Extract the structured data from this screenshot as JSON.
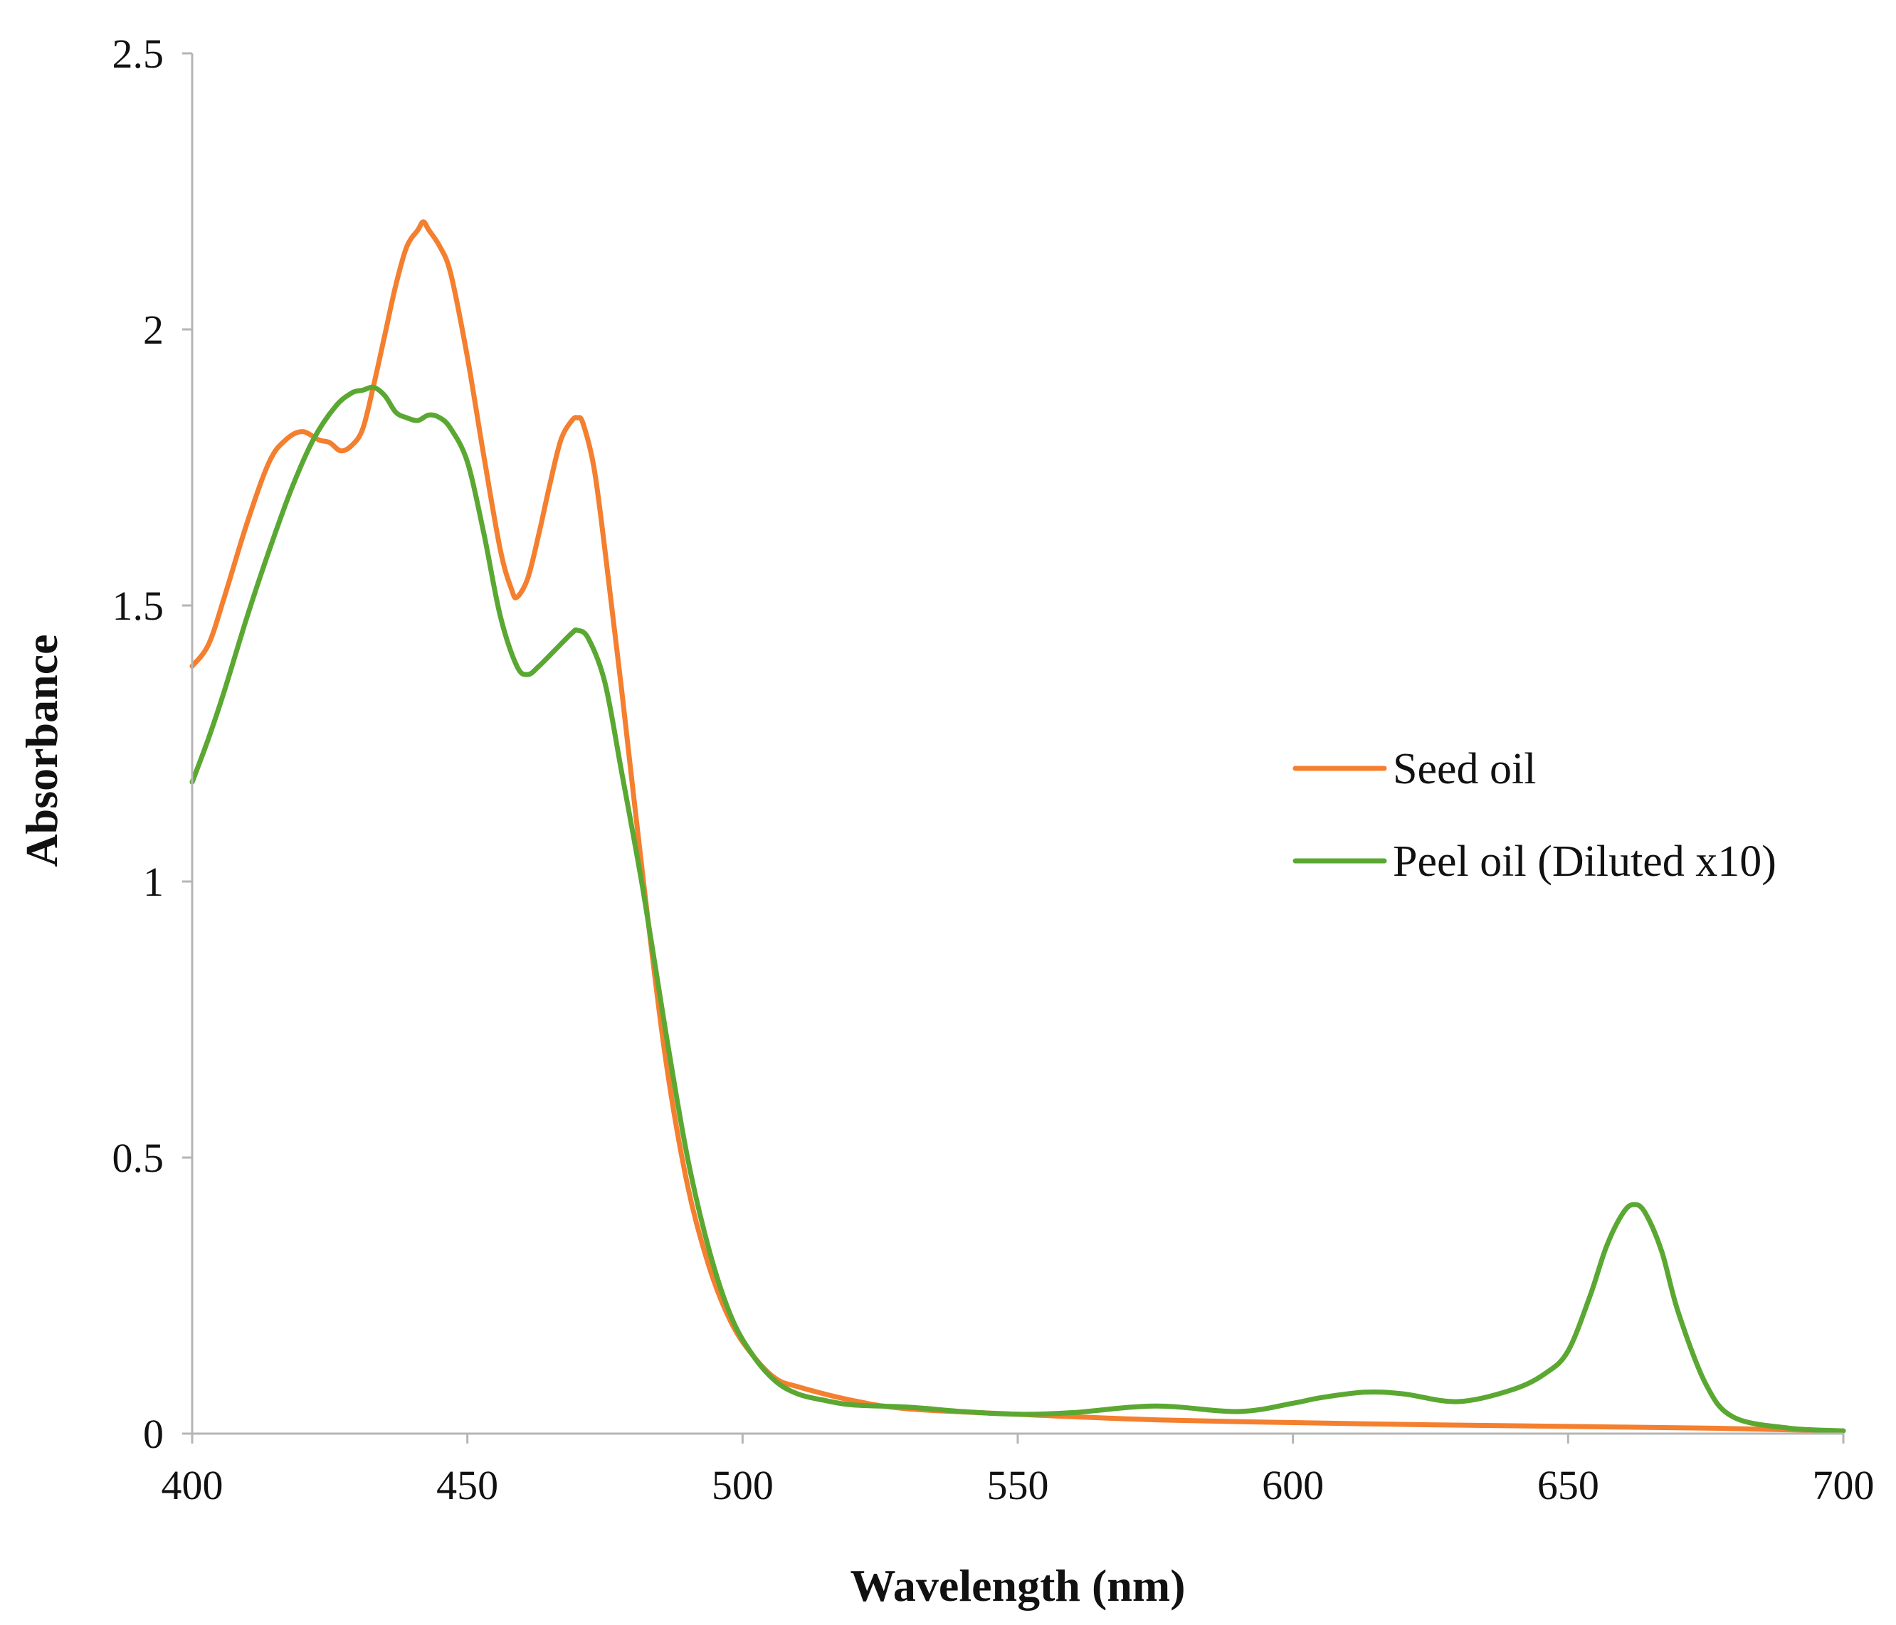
{
  "chart_data": {
    "type": "line",
    "title": "",
    "xlabel": "Wavelength (nm)",
    "ylabel": "Absorbance",
    "xlim": [
      400,
      700
    ],
    "ylim": [
      0,
      2.5
    ],
    "xticks": [
      400,
      450,
      500,
      550,
      600,
      650,
      700
    ],
    "yticks": [
      0,
      0.5,
      1,
      1.5,
      2,
      2.5
    ],
    "xtick_labels": [
      "400",
      "450",
      "500",
      "550",
      "600",
      "650",
      "700"
    ],
    "ytick_labels": [
      "0",
      "0.5",
      "1",
      "1.5",
      "2",
      "2.5"
    ],
    "grid": false,
    "legend_position": "right-center",
    "series": [
      {
        "name": "Seed oil",
        "color": "#f47f2f",
        "x": [
          400,
          403,
          406,
          410,
          414,
          417,
          420,
          423,
          425,
          427,
          429,
          431,
          433,
          435,
          437,
          439,
          441,
          442,
          443,
          445,
          447,
          450,
          453,
          456,
          458,
          459,
          461,
          463,
          465,
          467,
          469,
          470,
          471,
          473,
          475,
          478,
          482,
          486,
          490,
          494,
          498,
          502,
          506,
          510,
          520,
          530,
          550,
          575,
          600,
          625,
          650,
          675,
          690,
          700
        ],
        "y": [
          1.39,
          1.43,
          1.52,
          1.65,
          1.76,
          1.8,
          1.815,
          1.8,
          1.795,
          1.78,
          1.79,
          1.82,
          1.9,
          1.99,
          2.08,
          2.15,
          2.18,
          2.195,
          2.18,
          2.15,
          2.1,
          1.95,
          1.77,
          1.6,
          1.53,
          1.515,
          1.55,
          1.63,
          1.72,
          1.8,
          1.835,
          1.84,
          1.83,
          1.75,
          1.6,
          1.35,
          1.0,
          0.68,
          0.45,
          0.3,
          0.2,
          0.14,
          0.1,
          0.085,
          0.06,
          0.045,
          0.035,
          0.025,
          0.02,
          0.016,
          0.013,
          0.01,
          0.007,
          0.005
        ]
      },
      {
        "name": "Peel oil (Diluted x10)",
        "color": "#5aa832",
        "x": [
          400,
          403,
          406,
          410,
          414,
          418,
          422,
          426,
          429,
          431,
          433,
          435,
          437,
          439,
          441,
          443,
          445,
          447,
          450,
          453,
          456,
          459,
          461,
          463,
          466,
          469,
          470,
          472,
          475,
          478,
          482,
          486,
          490,
          494,
          498,
          502,
          506,
          510,
          515,
          520,
          530,
          540,
          550,
          560,
          575,
          590,
          600,
          605,
          613,
          620,
          630,
          640,
          646,
          650,
          654,
          657,
          660,
          662,
          664,
          667,
          670,
          675,
          680,
          690,
          700
        ],
        "y": [
          1.18,
          1.26,
          1.35,
          1.48,
          1.6,
          1.71,
          1.8,
          1.86,
          1.885,
          1.89,
          1.895,
          1.88,
          1.85,
          1.84,
          1.835,
          1.845,
          1.84,
          1.82,
          1.76,
          1.63,
          1.48,
          1.39,
          1.375,
          1.39,
          1.42,
          1.45,
          1.455,
          1.44,
          1.36,
          1.2,
          0.98,
          0.73,
          0.5,
          0.33,
          0.21,
          0.14,
          0.095,
          0.072,
          0.06,
          0.052,
          0.048,
          0.04,
          0.035,
          0.038,
          0.05,
          0.04,
          0.055,
          0.065,
          0.075,
          0.072,
          0.058,
          0.08,
          0.11,
          0.15,
          0.25,
          0.34,
          0.4,
          0.415,
          0.4,
          0.33,
          0.22,
          0.09,
          0.03,
          0.01,
          0.005
        ]
      }
    ]
  }
}
